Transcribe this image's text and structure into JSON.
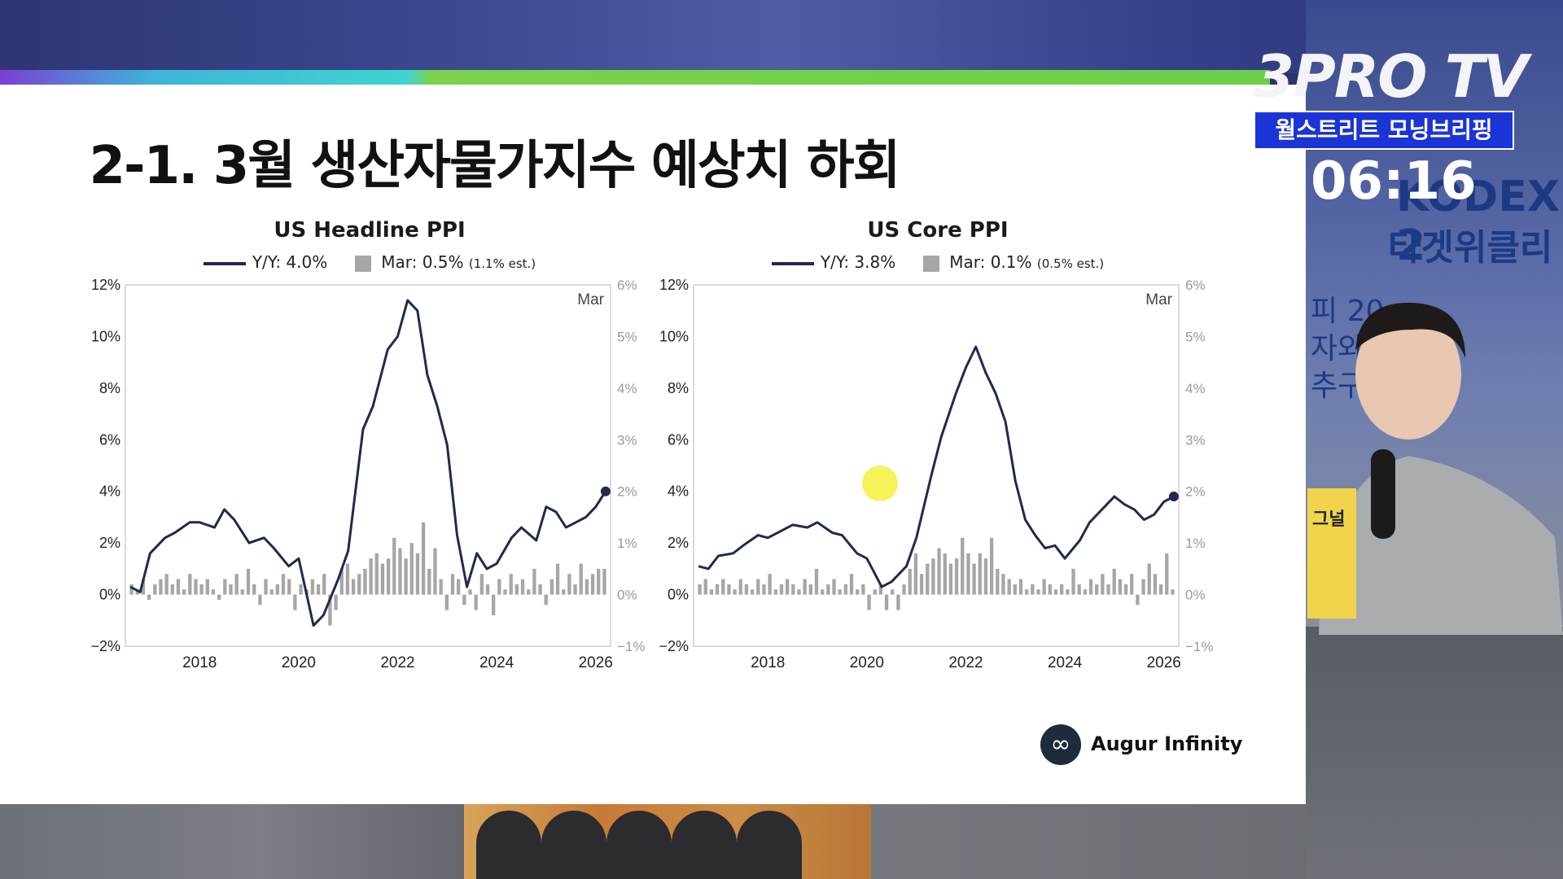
{
  "slide": {
    "title": "2-1. 3월 생산자물가지수 예상치 하회",
    "source_logo_text": "Augur Infinity",
    "source_logo_icon": "infinity-icon"
  },
  "broadcast": {
    "channel": "3PRO TV",
    "program": "월스트리트 모닝브리핑",
    "time": "06:16",
    "side_text_1": "KODEX 2",
    "side_text_2": "타겟위클리",
    "side_text_3": "피 20",
    "side_text_4": "자와",
    "side_text_5": "추구",
    "sticker_text": "그널"
  },
  "colors": {
    "line": "#1e2b4e",
    "bar": "#a6a6a6",
    "program_bg": "#1a34d6",
    "highlight": "#f5f03c"
  },
  "chart_data": [
    {
      "type": "line+bar",
      "title": "US Headline PPI",
      "legend": [
        {
          "label": "Y/Y: 4.0%",
          "note": ""
        },
        {
          "label": "Mar: 0.5%",
          "note": "(1.1% est.)"
        }
      ],
      "annotation": "Mar",
      "x_ticks": [
        "2018",
        "2020",
        "2022",
        "2024",
        "2026"
      ],
      "x_range": [
        2016.5,
        2026.3
      ],
      "left_axis": {
        "ticks": [
          "12%",
          "10%",
          "8%",
          "6%",
          "4%",
          "2%",
          "0%",
          "−2%"
        ],
        "range": [
          -2,
          12
        ]
      },
      "right_axis": {
        "ticks": [
          "6%",
          "5%",
          "4%",
          "3%",
          "2%",
          "1%",
          "0%",
          "−1%"
        ],
        "range": [
          -1,
          6
        ]
      },
      "series_line": [
        [
          2016.6,
          0.3
        ],
        [
          2016.8,
          0.1
        ],
        [
          2017.0,
          1.6
        ],
        [
          2017.3,
          2.2
        ],
        [
          2017.5,
          2.4
        ],
        [
          2017.8,
          2.8
        ],
        [
          2018.0,
          2.8
        ],
        [
          2018.3,
          2.6
        ],
        [
          2018.5,
          3.3
        ],
        [
          2018.7,
          2.9
        ],
        [
          2019.0,
          2.0
        ],
        [
          2019.3,
          2.2
        ],
        [
          2019.5,
          1.8
        ],
        [
          2019.8,
          1.1
        ],
        [
          2020.0,
          1.4
        ],
        [
          2020.3,
          -1.2
        ],
        [
          2020.5,
          -0.8
        ],
        [
          2020.8,
          0.6
        ],
        [
          2021.0,
          1.7
        ],
        [
          2021.3,
          6.4
        ],
        [
          2021.5,
          7.3
        ],
        [
          2021.8,
          9.5
        ],
        [
          2022.0,
          10.0
        ],
        [
          2022.2,
          11.4
        ],
        [
          2022.4,
          11.0
        ],
        [
          2022.6,
          8.5
        ],
        [
          2022.8,
          7.3
        ],
        [
          2023.0,
          5.8
        ],
        [
          2023.2,
          2.3
        ],
        [
          2023.4,
          0.3
        ],
        [
          2023.6,
          1.6
        ],
        [
          2023.8,
          1.0
        ],
        [
          2024.0,
          1.2
        ],
        [
          2024.3,
          2.2
        ],
        [
          2024.5,
          2.6
        ],
        [
          2024.8,
          2.1
        ],
        [
          2025.0,
          3.4
        ],
        [
          2025.2,
          3.2
        ],
        [
          2025.4,
          2.6
        ],
        [
          2025.6,
          2.8
        ],
        [
          2025.8,
          3.0
        ],
        [
          2026.0,
          3.4
        ],
        [
          2026.2,
          4.0
        ]
      ],
      "series_bar": [
        0.2,
        0.1,
        0.3,
        -0.1,
        0.2,
        0.3,
        0.4,
        0.2,
        0.3,
        0.1,
        0.4,
        0.3,
        0.2,
        0.3,
        0.1,
        -0.1,
        0.3,
        0.2,
        0.4,
        0.1,
        0.5,
        0.2,
        -0.2,
        0.3,
        0.1,
        0.2,
        0.4,
        0.3,
        -0.3,
        0.2,
        0.1,
        0.3,
        0.2,
        0.4,
        -0.6,
        -0.3,
        0.5,
        0.6,
        0.3,
        0.4,
        0.5,
        0.7,
        0.8,
        0.6,
        0.7,
        1.1,
        0.9,
        0.7,
        1.0,
        0.8,
        1.4,
        0.5,
        0.9,
        0.3,
        -0.3,
        0.4,
        0.3,
        -0.2,
        0.1,
        -0.3,
        0.4,
        0.2,
        -0.4,
        0.3,
        0.1,
        0.4,
        0.2,
        0.3,
        0.1,
        0.5,
        0.2,
        -0.2,
        0.3,
        0.6,
        0.1,
        0.4,
        0.2,
        0.6,
        0.3,
        0.4,
        0.5,
        0.5
      ],
      "last_point": 4.0
    },
    {
      "type": "line+bar",
      "title": "US Core PPI",
      "legend": [
        {
          "label": "Y/Y: 3.8%",
          "note": ""
        },
        {
          "label": "Mar: 0.1%",
          "note": "(0.5% est.)"
        }
      ],
      "annotation": "Mar",
      "x_ticks": [
        "2018",
        "2020",
        "2022",
        "2024",
        "2026"
      ],
      "x_range": [
        2016.5,
        2026.3
      ],
      "left_axis": {
        "ticks": [
          "12%",
          "10%",
          "8%",
          "6%",
          "4%",
          "2%",
          "0%",
          "−2%"
        ],
        "range": [
          -2,
          12
        ]
      },
      "right_axis": {
        "ticks": [
          "6%",
          "5%",
          "4%",
          "3%",
          "2%",
          "1%",
          "0%",
          "−1%"
        ],
        "range": [
          -1,
          6
        ]
      },
      "series_line": [
        [
          2016.6,
          1.1
        ],
        [
          2016.8,
          1.0
        ],
        [
          2017.0,
          1.5
        ],
        [
          2017.3,
          1.6
        ],
        [
          2017.5,
          1.9
        ],
        [
          2017.8,
          2.3
        ],
        [
          2018.0,
          2.2
        ],
        [
          2018.3,
          2.5
        ],
        [
          2018.5,
          2.7
        ],
        [
          2018.8,
          2.6
        ],
        [
          2019.0,
          2.8
        ],
        [
          2019.3,
          2.4
        ],
        [
          2019.5,
          2.3
        ],
        [
          2019.8,
          1.6
        ],
        [
          2020.0,
          1.4
        ],
        [
          2020.3,
          0.3
        ],
        [
          2020.5,
          0.5
        ],
        [
          2020.8,
          1.1
        ],
        [
          2021.0,
          2.2
        ],
        [
          2021.3,
          4.6
        ],
        [
          2021.5,
          6.1
        ],
        [
          2021.8,
          7.8
        ],
        [
          2022.0,
          8.8
        ],
        [
          2022.2,
          9.6
        ],
        [
          2022.4,
          8.6
        ],
        [
          2022.6,
          7.8
        ],
        [
          2022.8,
          6.7
        ],
        [
          2023.0,
          4.4
        ],
        [
          2023.2,
          2.9
        ],
        [
          2023.4,
          2.3
        ],
        [
          2023.6,
          1.8
        ],
        [
          2023.8,
          1.9
        ],
        [
          2024.0,
          1.4
        ],
        [
          2024.3,
          2.1
        ],
        [
          2024.5,
          2.8
        ],
        [
          2024.8,
          3.4
        ],
        [
          2025.0,
          3.8
        ],
        [
          2025.2,
          3.5
        ],
        [
          2025.4,
          3.3
        ],
        [
          2025.6,
          2.9
        ],
        [
          2025.8,
          3.1
        ],
        [
          2026.0,
          3.6
        ],
        [
          2026.2,
          3.8
        ]
      ],
      "series_bar": [
        0.2,
        0.3,
        0.1,
        0.2,
        0.3,
        0.2,
        0.1,
        0.3,
        0.2,
        0.1,
        0.3,
        0.2,
        0.4,
        0.1,
        0.2,
        0.3,
        0.2,
        0.1,
        0.3,
        0.2,
        0.5,
        0.1,
        0.2,
        0.3,
        0.1,
        0.2,
        0.4,
        0.1,
        0.2,
        -0.3,
        0.1,
        0.2,
        -0.3,
        0.1,
        -0.3,
        0.2,
        0.5,
        0.8,
        0.4,
        0.6,
        0.7,
        0.9,
        0.8,
        0.6,
        0.7,
        1.1,
        0.8,
        0.6,
        0.8,
        0.7,
        1.1,
        0.5,
        0.4,
        0.3,
        0.2,
        0.3,
        0.1,
        0.2,
        0.1,
        0.3,
        0.2,
        0.1,
        0.2,
        0.1,
        0.5,
        0.2,
        0.1,
        0.3,
        0.2,
        0.4,
        0.2,
        0.5,
        0.3,
        0.2,
        0.4,
        -0.2,
        0.3,
        0.6,
        0.4,
        0.2,
        0.8,
        0.1
      ],
      "last_point": 3.8
    }
  ]
}
